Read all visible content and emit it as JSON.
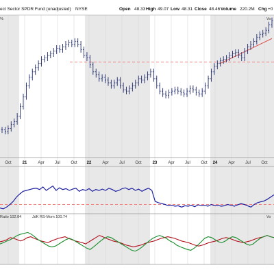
{
  "header": {
    "title": "ect Sector SPDR Fund (unadjusted)",
    "exchange": "NYSE",
    "open_label": "Open",
    "open_value": "48.33",
    "high_label": "High",
    "high_value": "49.07",
    "low_label": "Low",
    "low_value": "48.31",
    "close_label": "Close",
    "close_value": "48.46",
    "volume_label": "Volume",
    "volume_value": "220.2M",
    "chg_label": "Chg",
    "chg_value": "+0",
    "corner_mark": "%",
    "right_fragment": "Vo"
  },
  "indicator_label": {
    "ratio": "Ratio 102.84",
    "rsm": "JdK RS-Mom 100.74",
    "right_fragment": "Vo"
  },
  "colors": {
    "price": "#1f2a6b",
    "rs": "#1c1fa0",
    "red": "#b0101c",
    "green": "#1a8c2c",
    "dashed": "#f08080",
    "trend": "#e05050",
    "band": "#e8e8e8"
  },
  "chart_data": [
    {
      "type": "ohlc",
      "x_ticks": [
        "Oct",
        "21",
        "Apr",
        "Jul",
        "Oct",
        "22",
        "Apr",
        "Jul",
        "Oct",
        "23",
        "Apr",
        "Jul",
        "Oct",
        "24",
        "Apr",
        "Jul",
        "Oct"
      ],
      "bold_ticks": [
        "21",
        "22",
        "23",
        "24"
      ],
      "ylim": [
        0,
        100
      ],
      "closes": [
        18,
        17,
        19,
        22,
        24,
        28,
        35,
        42,
        50,
        56,
        60,
        63,
        66,
        69,
        70,
        72,
        73,
        75,
        77,
        76,
        78,
        80,
        81,
        80,
        82,
        80,
        76,
        72,
        70,
        65,
        60,
        58,
        55,
        56,
        54,
        52,
        50,
        52,
        54,
        50,
        47,
        46,
        48,
        50,
        52,
        55,
        54,
        56,
        58,
        60,
        55,
        50,
        46,
        44,
        43,
        45,
        46,
        47,
        46,
        45,
        44,
        46,
        48,
        47,
        45,
        44,
        46,
        50,
        55,
        60,
        64,
        66,
        68,
        69,
        70,
        72,
        73,
        74,
        72,
        70,
        75,
        78,
        80,
        82,
        85,
        87,
        88,
        90,
        94,
        97
      ],
      "horizontal_levels": [
        67
      ],
      "trendline": {
        "from": [
          72,
          70
        ],
        "to": [
          89,
          88
        ]
      }
    },
    {
      "type": "line",
      "series_name": "Ratio",
      "ylim": [
        0,
        100
      ],
      "values": [
        10,
        8,
        12,
        18,
        25,
        35,
        42,
        48,
        50,
        52,
        54,
        55,
        52,
        58,
        50,
        55,
        60,
        50,
        56,
        52,
        54,
        50,
        53,
        55,
        48,
        52,
        50,
        54,
        48,
        52,
        50,
        53,
        50,
        55,
        52,
        48,
        50,
        54,
        56,
        52,
        55,
        50,
        53,
        48,
        52,
        55,
        50,
        25,
        22,
        20,
        18,
        15,
        16,
        14,
        15,
        12,
        15,
        14,
        16,
        13,
        17,
        15,
        16,
        14,
        18,
        15,
        16,
        14,
        15,
        18,
        16,
        14,
        17,
        20,
        18,
        15,
        12,
        18,
        22,
        24,
        26,
        30,
        35,
        40
      ],
      "horizontal_levels": [
        18
      ]
    },
    {
      "type": "line",
      "series": [
        {
          "name": "Ratio",
          "values": [
            50,
            52,
            55,
            60,
            58,
            55,
            52,
            55,
            60,
            62,
            58,
            55,
            52,
            50,
            48,
            52,
            55,
            58,
            60,
            62,
            58,
            55,
            52,
            50,
            48,
            45,
            50,
            55,
            60,
            65,
            62,
            58,
            55,
            52,
            50,
            48,
            45,
            42,
            40,
            38,
            40,
            42,
            45,
            48,
            50,
            52,
            55,
            58,
            60,
            62,
            60,
            58,
            55,
            52,
            50,
            48,
            45,
            42,
            40,
            42,
            45,
            48,
            50,
            52,
            55,
            58,
            60,
            58,
            55,
            52,
            50,
            48,
            50,
            52,
            55,
            58,
            60,
            62,
            65,
            62,
            60
          ]
        },
        {
          "name": "JdK RS-Mom",
          "values": [
            45,
            48,
            52,
            55,
            60,
            65,
            68,
            70,
            72,
            68,
            62,
            55,
            50,
            45,
            40,
            38,
            40,
            45,
            50,
            55,
            58,
            55,
            50,
            45,
            40,
            35,
            32,
            38,
            45,
            52,
            58,
            62,
            60,
            55,
            50,
            45,
            40,
            35,
            30,
            28,
            32,
            38,
            45,
            52,
            58,
            62,
            65,
            62,
            58,
            52,
            48,
            42,
            38,
            35,
            32,
            30,
            35,
            42,
            50,
            58,
            62,
            60,
            55,
            50,
            48,
            52,
            58,
            62,
            60,
            55,
            50,
            45,
            42,
            45,
            52,
            58,
            62,
            65,
            62,
            60
          ]
        }
      ]
    }
  ]
}
